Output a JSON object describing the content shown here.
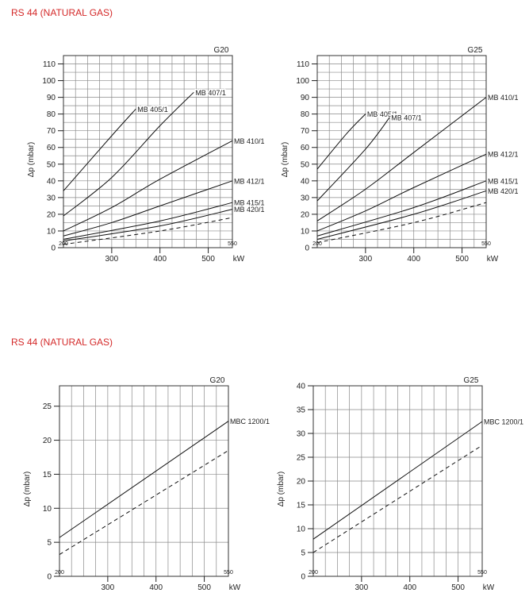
{
  "sections": [
    {
      "title": "RS 44 (NATURAL GAS)"
    },
    {
      "title": "RS 44 (NATURAL GAS)"
    }
  ],
  "chart_data": [
    {
      "type": "line",
      "gas_label": "G20",
      "ylabel": "Δp (mbar)",
      "xlabel": "kW",
      "xlim": [
        200,
        550
      ],
      "ylim": [
        0,
        115
      ],
      "x_ticks": [
        300,
        400,
        500
      ],
      "x_ticks_inside": [
        200,
        550
      ],
      "y_ticks": [
        0,
        10,
        20,
        30,
        40,
        50,
        60,
        70,
        80,
        90,
        100,
        110
      ],
      "grid": true,
      "series": [
        {
          "name": "MB 405/1",
          "dashed": false,
          "x": [
            200,
            300,
            350
          ],
          "y": [
            34,
            67,
            83
          ]
        },
        {
          "name": "MB 407/1",
          "dashed": false,
          "x": [
            200,
            300,
            400,
            470
          ],
          "y": [
            19,
            42,
            73,
            93
          ]
        },
        {
          "name": "MB 410/1",
          "dashed": false,
          "x": [
            200,
            300,
            400,
            550
          ],
          "y": [
            10,
            24,
            41,
            64
          ]
        },
        {
          "name": "MB 412/1",
          "dashed": false,
          "x": [
            200,
            300,
            400,
            550
          ],
          "y": [
            7,
            15,
            25,
            40
          ]
        },
        {
          "name": "MB 415/1",
          "dashed": false,
          "x": [
            200,
            400,
            550
          ],
          "y": [
            5,
            16,
            27
          ]
        },
        {
          "name": "MB 420/1",
          "dashed": false,
          "x": [
            200,
            400,
            550
          ],
          "y": [
            4,
            13,
            23
          ]
        },
        {
          "name": "",
          "dashed": true,
          "x": [
            200,
            400,
            550
          ],
          "y": [
            2,
            10,
            18
          ]
        }
      ]
    },
    {
      "type": "line",
      "gas_label": "G25",
      "ylabel": "Δp (mbar)",
      "xlabel": "kW",
      "xlim": [
        200,
        550
      ],
      "ylim": [
        0,
        115
      ],
      "x_ticks": [
        300,
        400,
        500
      ],
      "x_ticks_inside": [
        200,
        550
      ],
      "y_ticks": [
        0,
        10,
        20,
        30,
        40,
        50,
        60,
        70,
        80,
        90,
        100,
        110
      ],
      "grid": true,
      "series": [
        {
          "name": "MB 405/1",
          "dashed": false,
          "x": [
            200,
            260,
            300
          ],
          "y": [
            47,
            68,
            80
          ]
        },
        {
          "name": "MB 407/1",
          "dashed": false,
          "x": [
            200,
            300,
            350
          ],
          "y": [
            28,
            59,
            78
          ]
        },
        {
          "name": "MB 410/1",
          "dashed": false,
          "x": [
            200,
            300,
            400,
            550
          ],
          "y": [
            16,
            35,
            57,
            90
          ]
        },
        {
          "name": "MB 412/1",
          "dashed": false,
          "x": [
            200,
            300,
            400,
            550
          ],
          "y": [
            10,
            22,
            36,
            56
          ]
        },
        {
          "name": "MB 415/1",
          "dashed": false,
          "x": [
            200,
            400,
            550
          ],
          "y": [
            7,
            24,
            40
          ]
        },
        {
          "name": "MB 420/1",
          "dashed": false,
          "x": [
            200,
            400,
            550
          ],
          "y": [
            5,
            20,
            34
          ]
        },
        {
          "name": "",
          "dashed": true,
          "x": [
            200,
            400,
            550
          ],
          "y": [
            3,
            15,
            27
          ]
        }
      ]
    },
    {
      "type": "line",
      "gas_label": "G20",
      "ylabel": "Δp (mbar)",
      "xlabel": "kW",
      "xlim": [
        200,
        550
      ],
      "ylim": [
        0,
        28
      ],
      "x_ticks": [
        300,
        400,
        500
      ],
      "x_ticks_inside": [
        200,
        550
      ],
      "y_ticks": [
        0,
        5,
        10,
        15,
        20,
        25
      ],
      "grid": true,
      "series": [
        {
          "name": "MBC 1200/1",
          "dashed": false,
          "x": [
            200,
            550
          ],
          "y": [
            5.7,
            22.8
          ]
        },
        {
          "name": "",
          "dashed": true,
          "x": [
            200,
            550
          ],
          "y": [
            3.2,
            18.5
          ]
        }
      ]
    },
    {
      "type": "line",
      "gas_label": "G25",
      "ylabel": "Δp (mbar)",
      "xlabel": "kW",
      "xlim": [
        200,
        550
      ],
      "ylim": [
        0,
        40
      ],
      "x_ticks": [
        300,
        400,
        500
      ],
      "x_ticks_inside": [
        200,
        550
      ],
      "y_ticks": [
        0,
        5,
        10,
        15,
        20,
        25,
        30,
        35,
        40
      ],
      "grid": true,
      "series": [
        {
          "name": "MBC 1200/1",
          "dashed": false,
          "x": [
            200,
            550
          ],
          "y": [
            7.8,
            32.5
          ]
        },
        {
          "name": "",
          "dashed": true,
          "x": [
            200,
            550
          ],
          "y": [
            5,
            27.5
          ]
        }
      ]
    }
  ]
}
